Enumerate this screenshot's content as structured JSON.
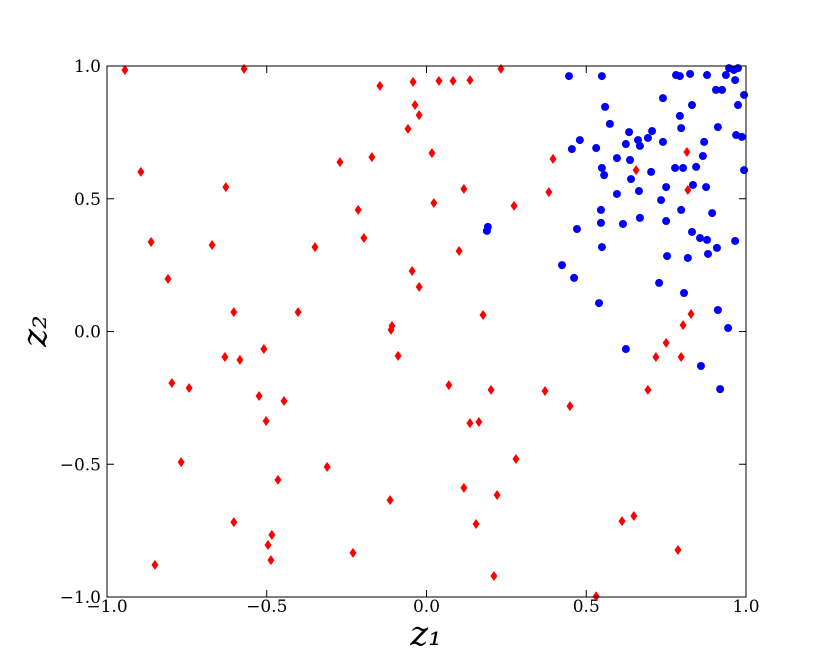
{
  "chart_data": {
    "type": "scatter",
    "xlabel": "z₁",
    "ylabel": "z₂",
    "xlim": [
      -1,
      1
    ],
    "ylim": [
      -1,
      1
    ],
    "xticks": [
      {
        "value": -1,
        "label": "−1.0"
      },
      {
        "value": -0.5,
        "label": "−0.5"
      },
      {
        "value": 0,
        "label": "0.0"
      },
      {
        "value": 0.5,
        "label": "0.5"
      },
      {
        "value": 1,
        "label": "1.0"
      }
    ],
    "yticks": [
      {
        "value": -1,
        "label": "−1.0"
      },
      {
        "value": -0.5,
        "label": "−0.5"
      },
      {
        "value": 0,
        "label": "0.0"
      },
      {
        "value": 0.5,
        "label": "0.5"
      },
      {
        "value": 1,
        "label": "1.0"
      }
    ],
    "grid": false,
    "series": [
      {
        "color": "#ff0000",
        "marker": "diamond",
        "x": [
          -0.944,
          -0.571,
          -0.042,
          0.039,
          0.083,
          0.136,
          0.233,
          -0.146,
          -0.036,
          -0.023,
          -0.058,
          0.017,
          0.396,
          -0.271,
          -0.171,
          -0.894,
          -0.628,
          -0.214,
          -0.196,
          0.023,
          0.117,
          0.274,
          0.383,
          -0.862,
          -0.671,
          -0.349,
          0.102,
          -0.809,
          -0.045,
          -0.023,
          -0.402,
          -0.603,
          -0.108,
          -0.111,
          0.177,
          -0.089,
          -0.631,
          -0.584,
          -0.509,
          -0.797,
          -0.743,
          0.07,
          0.202,
          0.371,
          -0.524,
          -0.446,
          0.449,
          -0.502,
          0.136,
          0.164,
          -0.768,
          -0.311,
          0.28,
          -0.465,
          0.117,
          -0.114,
          0.221,
          -0.603,
          0.155,
          -0.496,
          -0.484,
          -0.23,
          -0.487,
          -0.85,
          0.211,
          0.531,
          0.815,
          0.818,
          0.656,
          0.828,
          0.803,
          0.75,
          0.718,
          0.797,
          0.693,
          0.787,
          0.612,
          0.649
        ],
        "y": [
          0.985,
          0.989,
          0.94,
          0.944,
          0.944,
          0.947,
          0.989,
          0.925,
          0.853,
          0.815,
          0.763,
          0.672,
          0.65,
          0.638,
          0.657,
          0.601,
          0.544,
          0.458,
          0.352,
          0.484,
          0.537,
          0.473,
          0.525,
          0.337,
          0.326,
          0.318,
          0.303,
          0.198,
          0.228,
          0.168,
          0.073,
          0.073,
          0.021,
          0.006,
          0.062,
          -0.092,
          -0.096,
          -0.107,
          -0.066,
          -0.194,
          -0.213,
          -0.202,
          -0.22,
          -0.224,
          -0.243,
          -0.262,
          -0.281,
          -0.337,
          -0.345,
          -0.341,
          -0.492,
          -0.51,
          -0.48,
          -0.559,
          -0.589,
          -0.635,
          -0.616,
          -0.718,
          -0.725,
          -0.804,
          -0.766,
          -0.834,
          -0.861,
          -0.879,
          -0.921,
          -0.997,
          0.676,
          0.533,
          0.608,
          0.066,
          0.024,
          -0.043,
          -0.096,
          -0.096,
          -0.22,
          -0.823,
          -0.714,
          -0.695
        ]
      },
      {
        "color": "#0000ff",
        "marker": "circle",
        "x": [
          0.446,
          0.549,
          0.781,
          0.825,
          0.793,
          0.878,
          0.937,
          0.962,
          0.975,
          0.947,
          0.966,
          0.994,
          0.925,
          0.906,
          0.831,
          0.74,
          0.793,
          0.559,
          0.574,
          0.634,
          0.48,
          0.531,
          0.455,
          0.596,
          0.624,
          0.662,
          0.693,
          0.706,
          0.668,
          0.74,
          0.797,
          0.869,
          0.912,
          0.969,
          0.987,
          0.975,
          0.994,
          0.596,
          0.556,
          0.637,
          0.549,
          0.64,
          0.703,
          0.75,
          0.778,
          0.803,
          0.834,
          0.875,
          0.865,
          0.844,
          0.665,
          0.734,
          0.894,
          0.797,
          0.831,
          0.856,
          0.818,
          0.878,
          0.909,
          0.966,
          0.75,
          0.668,
          0.615,
          0.546,
          0.546,
          0.471,
          0.549,
          0.753,
          0.728,
          0.881,
          0.424,
          0.462,
          0.192,
          0.189,
          0.54,
          0.806,
          0.912,
          0.944,
          0.859,
          0.919,
          0.624
        ],
        "y": [
          0.962,
          0.962,
          0.966,
          0.97,
          0.962,
          0.966,
          0.966,
          0.985,
          0.992,
          0.992,
          0.947,
          0.891,
          0.91,
          0.91,
          0.853,
          0.879,
          0.812,
          0.846,
          0.782,
          0.751,
          0.721,
          0.691,
          0.687,
          0.653,
          0.706,
          0.721,
          0.729,
          0.755,
          0.699,
          0.714,
          0.766,
          0.714,
          0.77,
          0.74,
          0.733,
          0.853,
          0.608,
          0.518,
          0.589,
          0.646,
          0.616,
          0.574,
          0.601,
          0.544,
          0.616,
          0.616,
          0.552,
          0.544,
          0.661,
          0.62,
          0.529,
          0.495,
          0.446,
          0.458,
          0.375,
          0.352,
          0.277,
          0.345,
          0.315,
          0.341,
          0.416,
          0.428,
          0.405,
          0.458,
          0.409,
          0.386,
          0.318,
          0.284,
          0.183,
          0.292,
          0.25,
          0.202,
          0.394,
          0.379,
          0.107,
          0.145,
          0.081,
          0.013,
          -0.13,
          -0.217,
          -0.066
        ]
      }
    ]
  }
}
